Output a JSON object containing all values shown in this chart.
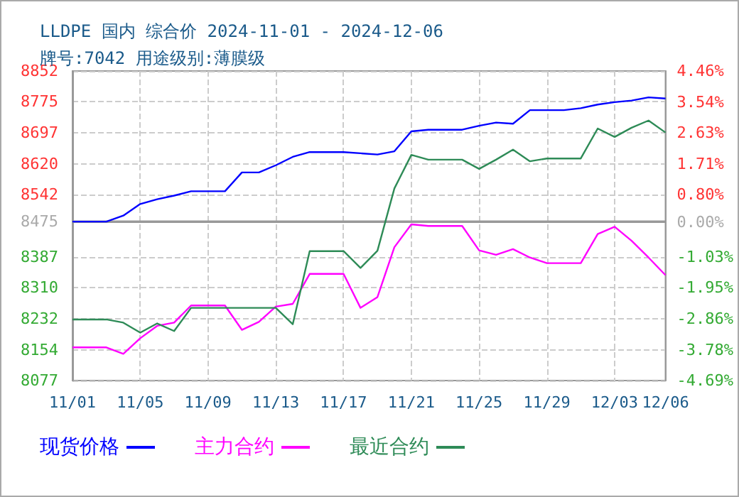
{
  "chart_data": {
    "type": "line",
    "title": "LLDPE 国内 综合价 2024-11-01 - 2024-12-06",
    "subtitle": "牌号:7042 用途级别:薄膜级",
    "categories": [
      "11/01",
      null,
      null,
      null,
      "11/05",
      null,
      null,
      null,
      "11/09",
      null,
      null,
      null,
      "11/13",
      null,
      null,
      null,
      "11/17",
      null,
      null,
      null,
      "11/21",
      null,
      null,
      null,
      "11/25",
      null,
      null,
      null,
      "11/29",
      null,
      null,
      null,
      "12/03",
      null,
      null,
      "12/06"
    ],
    "series": [
      {
        "name": "现货价格",
        "color": "#0000ff",
        "values": [
          8475,
          8475,
          8475,
          8490,
          8519,
          8531,
          8540,
          8551,
          8551,
          8551,
          8598,
          8598,
          8616,
          8637,
          8649,
          8649,
          8649,
          8646,
          8643,
          8651,
          8701,
          8705,
          8705,
          8705,
          8715,
          8723,
          8720,
          8754,
          8754,
          8754,
          8759,
          8768,
          8774,
          8778,
          8786,
          8783
        ]
      },
      {
        "name": "主力合约",
        "color": "#ff00ff",
        "values": [
          8160,
          8160,
          8160,
          8144,
          8183,
          8214,
          8222,
          8265,
          8265,
          8265,
          8204,
          8224,
          8262,
          8269,
          8344,
          8344,
          8344,
          8259,
          8286,
          8411,
          8468,
          8464,
          8464,
          8464,
          8403,
          8392,
          8406,
          8385,
          8371,
          8371,
          8371,
          8444,
          8462,
          8427,
          8385,
          8341
        ]
      },
      {
        "name": "最近合约",
        "color": "#2e8b57",
        "values": [
          8230,
          8230,
          8230,
          8222,
          8197,
          8220,
          8201,
          8259,
          8259,
          8259,
          8259,
          8259,
          8259,
          8218,
          8401,
          8401,
          8401,
          8359,
          8402,
          8558,
          8642,
          8630,
          8630,
          8630,
          8607,
          8630,
          8655,
          8626,
          8633,
          8633,
          8633,
          8708,
          8687,
          8710,
          8728,
          8698
        ]
      }
    ],
    "ylim": [
      8077,
      8852
    ],
    "yticks": [
      8077,
      8154,
      8232,
      8310,
      8387,
      8475,
      8542,
      8620,
      8697,
      8775,
      8852
    ],
    "y2lim": [
      -4.69,
      4.46
    ],
    "y2ticks": [
      {
        "value": -4.69,
        "label": "-4.69%"
      },
      {
        "value": -3.78,
        "label": "-3.78%"
      },
      {
        "value": -2.86,
        "label": "-2.86%"
      },
      {
        "value": -1.95,
        "label": "-1.95%"
      },
      {
        "value": -1.03,
        "label": "-1.03%"
      },
      {
        "value": 0,
        "label": "0.00%"
      },
      {
        "value": 0.8,
        "label": "0.80%"
      },
      {
        "value": 1.71,
        "label": "1.71%"
      },
      {
        "value": 2.63,
        "label": "2.63%"
      },
      {
        "value": 3.54,
        "label": "3.54%"
      },
      {
        "value": 4.46,
        "label": "4.46%"
      }
    ],
    "ref_lines": [
      {
        "axis": "y",
        "value": 8475,
        "color": "#999999"
      }
    ],
    "grid": true,
    "legend": "bottom",
    "marker": "none",
    "line_style": "solid"
  }
}
